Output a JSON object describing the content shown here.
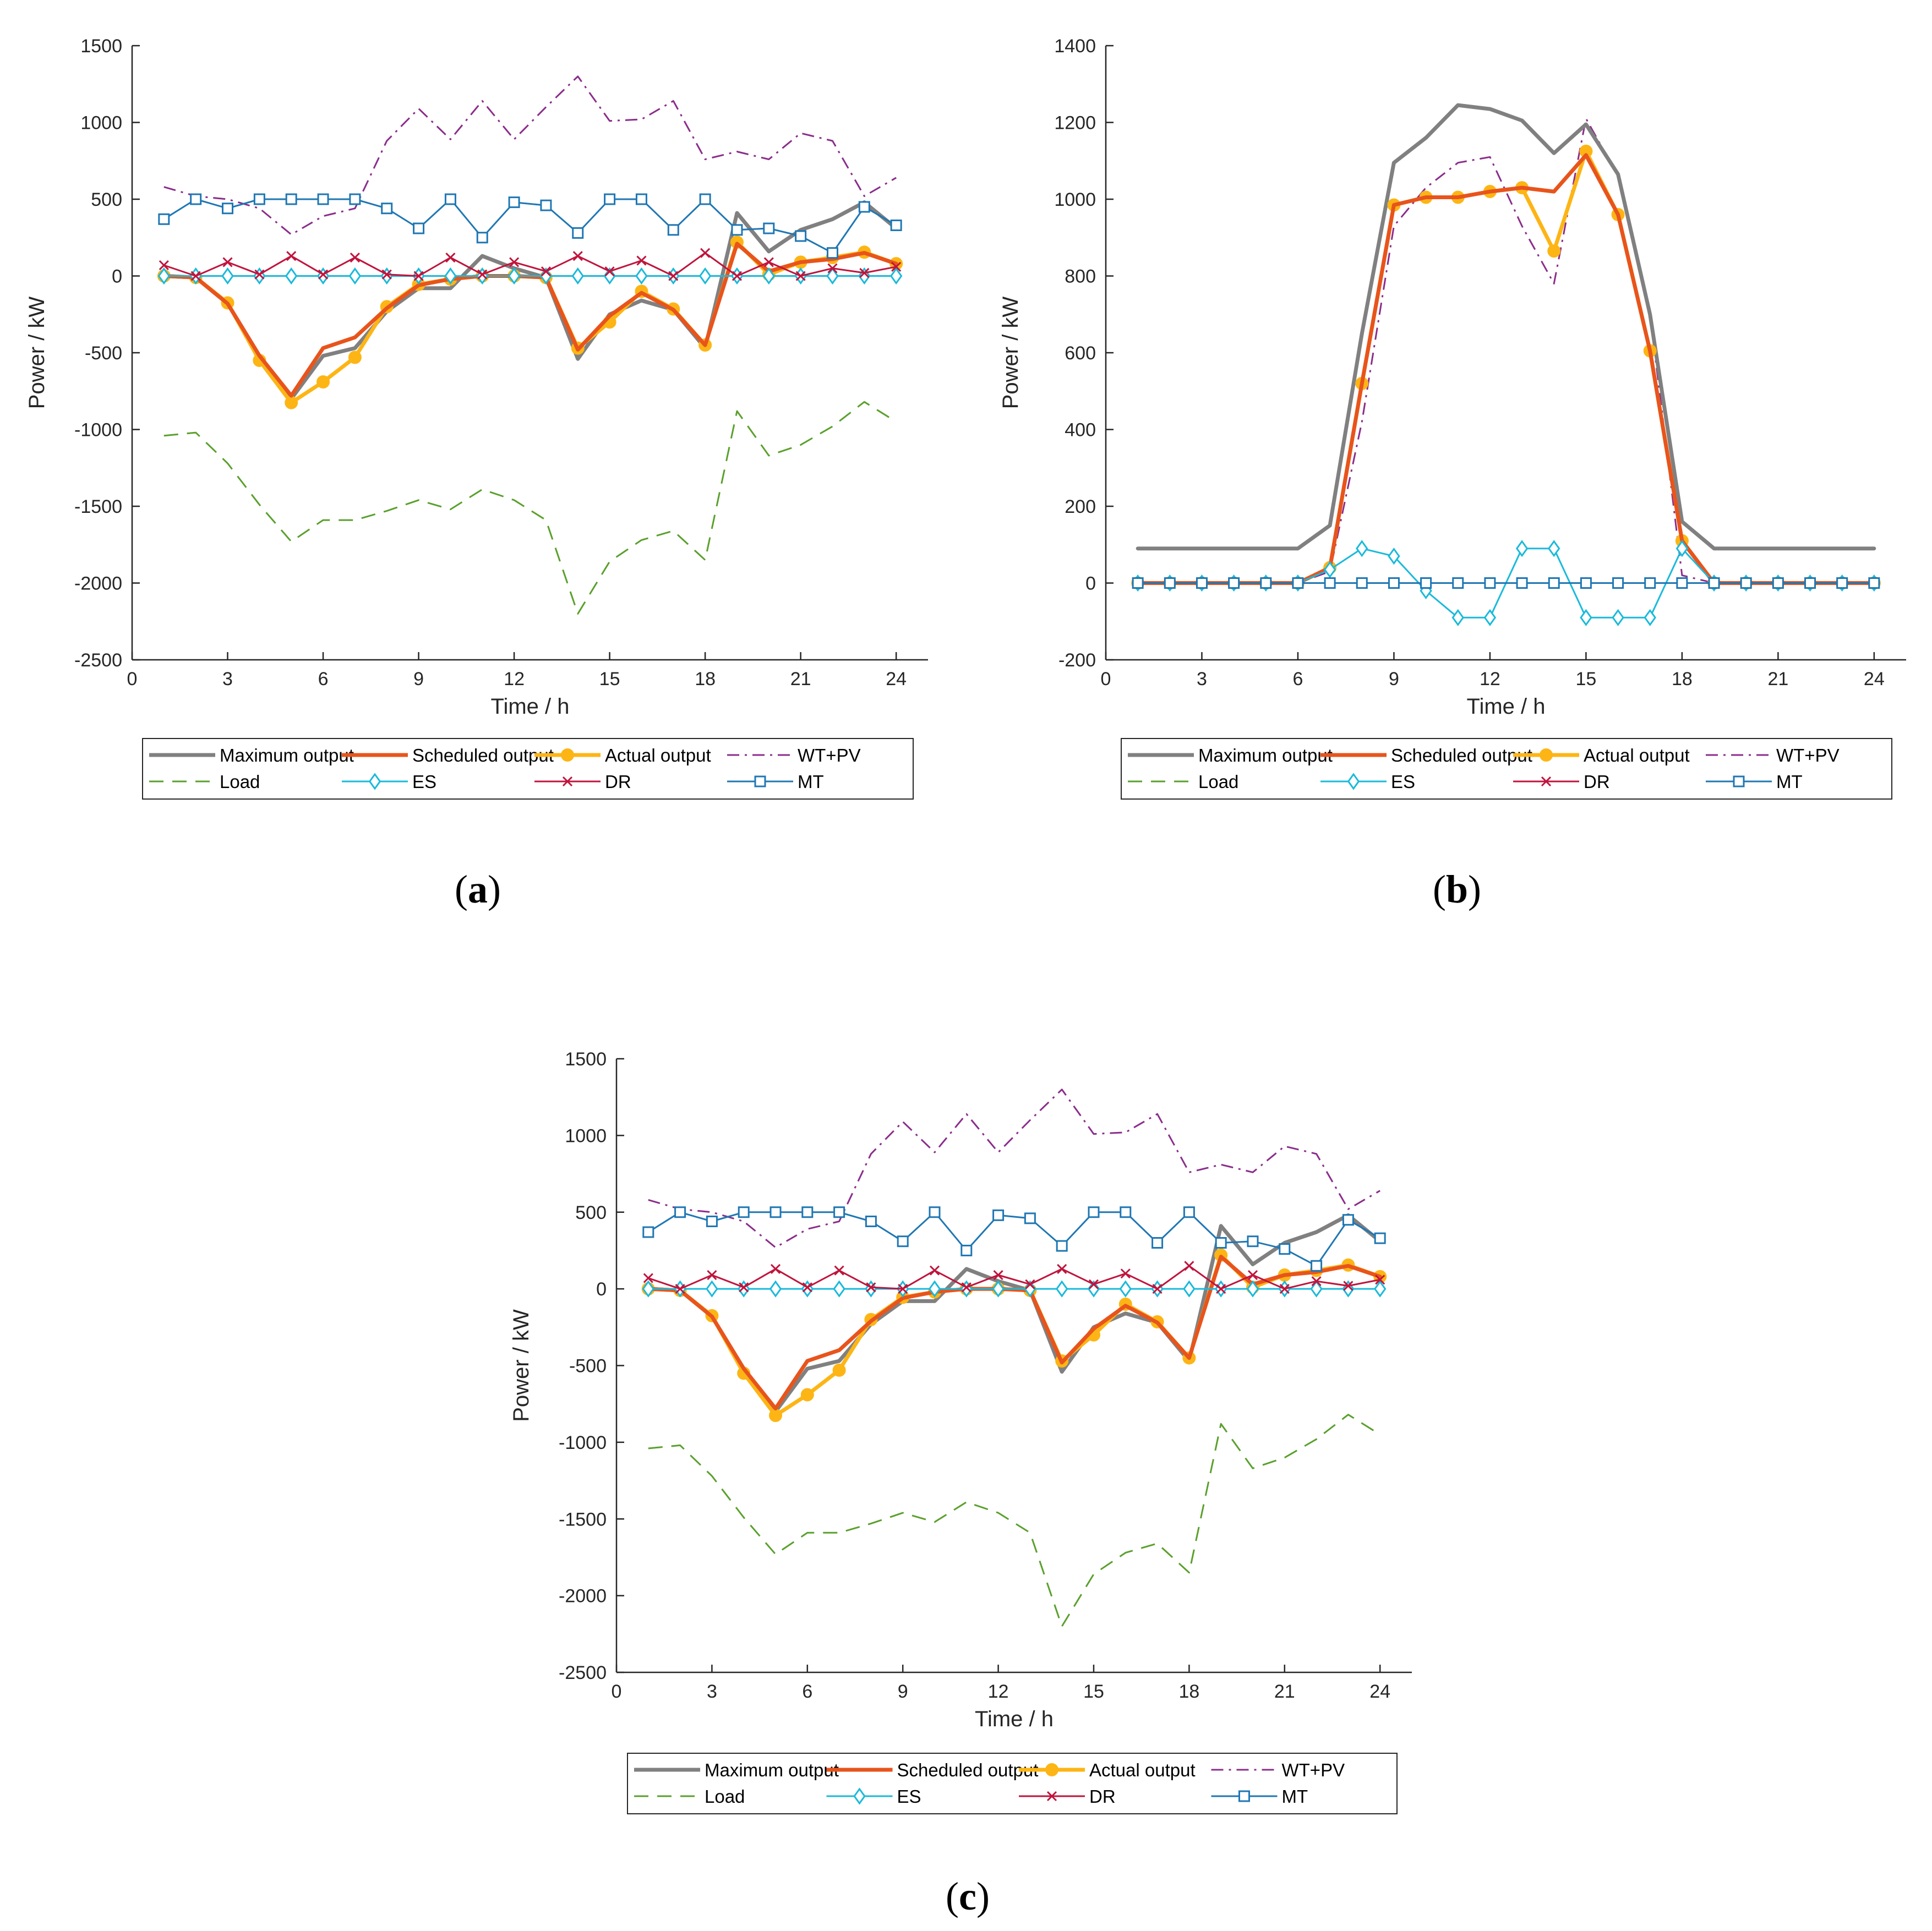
{
  "colors": {
    "maximum_output": "#808080",
    "scheduled_output": "#E8541C",
    "actual_output": "#FDB515",
    "wt_pv": "#8B2D8B",
    "load": "#5AA02C",
    "es": "#1ABADB",
    "dr": "#C0143C",
    "mt": "#1F77B4",
    "axis": "#262626"
  },
  "chart_data": [
    {
      "panel": "a",
      "panel_label_open": "(",
      "panel_label_letter": "a",
      "panel_label_close": ")",
      "type": "line",
      "xlabel": "Time / h",
      "ylabel": "Power / kW",
      "xlim": [
        0,
        25
      ],
      "ylim": [
        -2500,
        1500
      ],
      "xticks": [
        0,
        3,
        6,
        9,
        12,
        15,
        18,
        21,
        24
      ],
      "yticks": [
        -2500,
        -2000,
        -1500,
        -1000,
        -500,
        0,
        500,
        1000,
        1500
      ],
      "x": [
        1,
        2,
        3,
        4,
        5,
        6,
        7,
        8,
        9,
        10,
        11,
        12,
        13,
        14,
        15,
        16,
        17,
        18,
        19,
        20,
        21,
        22,
        23,
        24
      ],
      "legend": [
        "Maximum output",
        "Scheduled output",
        "Actual output",
        "WT+PV",
        "Load",
        "ES",
        "DR",
        "MT"
      ],
      "series": [
        {
          "name": "Maximum output",
          "key": "maximum_output",
          "style": "solid-thick",
          "values": [
            0,
            -10,
            -180,
            -520,
            -800,
            -520,
            -470,
            -230,
            -80,
            -80,
            130,
            50,
            -10,
            -540,
            -250,
            -160,
            -220,
            -470,
            410,
            160,
            300,
            370,
            480,
            310
          ]
        },
        {
          "name": "Scheduled output",
          "key": "scheduled_output",
          "style": "solid-thick",
          "values": [
            0,
            -10,
            -180,
            -520,
            -780,
            -470,
            -400,
            -210,
            -60,
            -20,
            0,
            0,
            -10,
            -480,
            -260,
            -110,
            -220,
            -450,
            210,
            30,
            90,
            110,
            150,
            80
          ]
        },
        {
          "name": "Actual output",
          "key": "actual_output",
          "style": "solid-thick",
          "marker": "dot",
          "values": [
            0,
            -10,
            -175,
            -550,
            -825,
            -690,
            -530,
            -200,
            -55,
            -20,
            0,
            0,
            -10,
            -470,
            -300,
            -100,
            -215,
            -450,
            220,
            10,
            90,
            120,
            155,
            80
          ]
        },
        {
          "name": "WT+PV",
          "key": "wt_pv",
          "style": "dashdot",
          "values": [
            580,
            520,
            500,
            440,
            270,
            390,
            440,
            880,
            1090,
            890,
            1140,
            890,
            1100,
            1300,
            1010,
            1020,
            1140,
            760,
            810,
            760,
            930,
            880,
            520,
            640
          ]
        },
        {
          "name": "Load",
          "key": "load",
          "style": "dashed",
          "values": [
            -1040,
            -1020,
            -1220,
            -1490,
            -1730,
            -1590,
            -1590,
            -1530,
            -1460,
            -1520,
            -1390,
            -1460,
            -1590,
            -2200,
            -1860,
            -1720,
            -1660,
            -1850,
            -880,
            -1170,
            -1100,
            -980,
            -820,
            -950
          ]
        },
        {
          "name": "ES",
          "key": "es",
          "style": "solid-thin",
          "marker": "diamond",
          "values": [
            0,
            0,
            0,
            0,
            0,
            0,
            0,
            0,
            0,
            0,
            0,
            0,
            0,
            0,
            0,
            0,
            0,
            0,
            0,
            0,
            0,
            0,
            0,
            0
          ]
        },
        {
          "name": "DR",
          "key": "dr",
          "style": "solid-thin",
          "marker": "x",
          "values": [
            70,
            0,
            90,
            10,
            130,
            10,
            120,
            10,
            0,
            120,
            10,
            90,
            30,
            130,
            30,
            100,
            0,
            150,
            0,
            90,
            0,
            50,
            20,
            60
          ]
        },
        {
          "name": "MT",
          "key": "mt",
          "style": "solid-thin",
          "marker": "square",
          "values": [
            370,
            500,
            440,
            500,
            500,
            500,
            500,
            440,
            310,
            500,
            250,
            480,
            460,
            280,
            500,
            500,
            300,
            500,
            300,
            310,
            260,
            150,
            450,
            330
          ]
        }
      ]
    },
    {
      "panel": "b",
      "panel_label_open": "(",
      "panel_label_letter": "b",
      "panel_label_close": ")",
      "type": "line",
      "xlabel": "Time / h",
      "ylabel": "Power / kW",
      "xlim": [
        0,
        25
      ],
      "ylim": [
        -200,
        1400
      ],
      "xticks": [
        0,
        3,
        6,
        9,
        12,
        15,
        18,
        21,
        24
      ],
      "yticks": [
        -200,
        0,
        200,
        400,
        600,
        800,
        1000,
        1200,
        1400
      ],
      "x": [
        1,
        2,
        3,
        4,
        5,
        6,
        7,
        8,
        9,
        10,
        11,
        12,
        13,
        14,
        15,
        16,
        17,
        18,
        19,
        20,
        21,
        22,
        23,
        24
      ],
      "legend": [
        "Maximum output",
        "Scheduled output",
        "Actual output",
        "WT+PV",
        "Load",
        "ES",
        "DR",
        "MT"
      ],
      "series": [
        {
          "name": "Maximum output",
          "key": "maximum_output",
          "style": "solid-thick",
          "values": [
            90,
            90,
            90,
            90,
            90,
            90,
            150,
            650,
            1095,
            1160,
            1245,
            1235,
            1205,
            1120,
            1195,
            1065,
            700,
            160,
            90,
            90,
            90,
            90,
            90,
            90
          ]
        },
        {
          "name": "Scheduled output",
          "key": "scheduled_output",
          "style": "solid-thick",
          "values": [
            0,
            0,
            0,
            0,
            0,
            0,
            40,
            520,
            985,
            1005,
            1005,
            1020,
            1030,
            1020,
            1115,
            960,
            605,
            110,
            0,
            0,
            0,
            0,
            0,
            0
          ]
        },
        {
          "name": "Actual output",
          "key": "actual_output",
          "style": "solid-thick",
          "marker": "dot",
          "values": [
            0,
            0,
            0,
            0,
            0,
            0,
            40,
            520,
            985,
            1005,
            1005,
            1020,
            1030,
            865,
            1125,
            960,
            605,
            110,
            0,
            0,
            0,
            0,
            0,
            0
          ]
        },
        {
          "name": "WT+PV",
          "key": "wt_pv",
          "style": "dashdot",
          "values": [
            0,
            0,
            0,
            0,
            0,
            0,
            30,
            420,
            930,
            1030,
            1095,
            1110,
            930,
            780,
            1210,
            1060,
            700,
            20,
            0,
            0,
            0,
            0,
            0,
            0
          ]
        },
        {
          "name": "Load",
          "key": "load",
          "style": "dashed",
          "values": [
            0,
            0,
            0,
            0,
            0,
            0,
            0,
            0,
            0,
            0,
            0,
            0,
            0,
            0,
            0,
            0,
            0,
            0,
            0,
            0,
            0,
            0,
            0,
            0
          ]
        },
        {
          "name": "ES",
          "key": "es",
          "style": "solid-thin",
          "marker": "diamond",
          "values": [
            0,
            0,
            0,
            0,
            0,
            0,
            35,
            90,
            70,
            -20,
            -90,
            -90,
            90,
            90,
            -90,
            -90,
            -90,
            90,
            0,
            0,
            0,
            0,
            0,
            0
          ]
        },
        {
          "name": "DR",
          "key": "dr",
          "style": "solid-thin",
          "marker": "x",
          "values": [
            0,
            0,
            0,
            0,
            0,
            0,
            0,
            0,
            0,
            0,
            0,
            0,
            0,
            0,
            0,
            0,
            0,
            0,
            0,
            0,
            0,
            0,
            0,
            0
          ]
        },
        {
          "name": "MT",
          "key": "mt",
          "style": "solid-thin",
          "marker": "square",
          "values": [
            0,
            0,
            0,
            0,
            0,
            0,
            0,
            0,
            0,
            0,
            0,
            0,
            0,
            0,
            0,
            0,
            0,
            0,
            0,
            0,
            0,
            0,
            0,
            0
          ]
        }
      ]
    },
    {
      "panel": "c",
      "panel_label_open": "(",
      "panel_label_letter": "c",
      "panel_label_close": ")",
      "type": "line",
      "xlabel": "Time / h",
      "ylabel": "Power / kW",
      "xlim": [
        0,
        25
      ],
      "ylim": [
        -2500,
        1500
      ],
      "xticks": [
        0,
        3,
        6,
        9,
        12,
        15,
        18,
        21,
        24
      ],
      "yticks": [
        -2500,
        -2000,
        -1500,
        -1000,
        -500,
        0,
        500,
        1000,
        1500
      ],
      "x": [
        1,
        2,
        3,
        4,
        5,
        6,
        7,
        8,
        9,
        10,
        11,
        12,
        13,
        14,
        15,
        16,
        17,
        18,
        19,
        20,
        21,
        22,
        23,
        24
      ],
      "legend": [
        "Maximum output",
        "Scheduled output",
        "Actual output",
        "WT+PV",
        "Load",
        "ES",
        "DR",
        "MT"
      ],
      "series": [
        {
          "name": "Maximum output",
          "key": "maximum_output",
          "style": "solid-thick",
          "values": [
            0,
            -10,
            -180,
            -520,
            -800,
            -520,
            -470,
            -230,
            -80,
            -80,
            130,
            50,
            -10,
            -540,
            -250,
            -160,
            -220,
            -470,
            410,
            160,
            300,
            370,
            480,
            310
          ]
        },
        {
          "name": "Scheduled output",
          "key": "scheduled_output",
          "style": "solid-thick",
          "values": [
            0,
            -10,
            -180,
            -520,
            -780,
            -470,
            -400,
            -210,
            -60,
            -20,
            0,
            0,
            -10,
            -480,
            -260,
            -110,
            -220,
            -450,
            210,
            30,
            90,
            110,
            150,
            80
          ]
        },
        {
          "name": "Actual output",
          "key": "actual_output",
          "style": "solid-thick",
          "marker": "dot",
          "values": [
            0,
            -10,
            -175,
            -550,
            -825,
            -690,
            -530,
            -200,
            -55,
            -20,
            0,
            0,
            -10,
            -470,
            -300,
            -100,
            -215,
            -450,
            220,
            10,
            90,
            120,
            155,
            80
          ]
        },
        {
          "name": "WT+PV",
          "key": "wt_pv",
          "style": "dashdot",
          "values": [
            580,
            520,
            500,
            440,
            270,
            390,
            440,
            880,
            1090,
            890,
            1140,
            890,
            1100,
            1300,
            1010,
            1020,
            1140,
            760,
            810,
            760,
            930,
            880,
            520,
            640
          ]
        },
        {
          "name": "Load",
          "key": "load",
          "style": "dashed",
          "values": [
            -1040,
            -1020,
            -1220,
            -1490,
            -1730,
            -1590,
            -1590,
            -1530,
            -1460,
            -1520,
            -1390,
            -1460,
            -1590,
            -2200,
            -1860,
            -1720,
            -1660,
            -1850,
            -880,
            -1170,
            -1100,
            -980,
            -820,
            -950
          ]
        },
        {
          "name": "ES",
          "key": "es",
          "style": "solid-thin",
          "marker": "diamond",
          "values": [
            0,
            0,
            0,
            0,
            0,
            0,
            0,
            0,
            0,
            0,
            0,
            0,
            0,
            0,
            0,
            0,
            0,
            0,
            0,
            0,
            0,
            0,
            0,
            0
          ]
        },
        {
          "name": "DR",
          "key": "dr",
          "style": "solid-thin",
          "marker": "x",
          "values": [
            70,
            0,
            90,
            10,
            130,
            10,
            120,
            10,
            0,
            120,
            10,
            90,
            30,
            130,
            30,
            100,
            0,
            150,
            0,
            90,
            0,
            50,
            20,
            60
          ]
        },
        {
          "name": "MT",
          "key": "mt",
          "style": "solid-thin",
          "marker": "square",
          "values": [
            370,
            500,
            440,
            500,
            500,
            500,
            500,
            440,
            310,
            500,
            250,
            480,
            460,
            280,
            500,
            500,
            300,
            500,
            300,
            310,
            260,
            150,
            450,
            330
          ]
        }
      ]
    }
  ]
}
